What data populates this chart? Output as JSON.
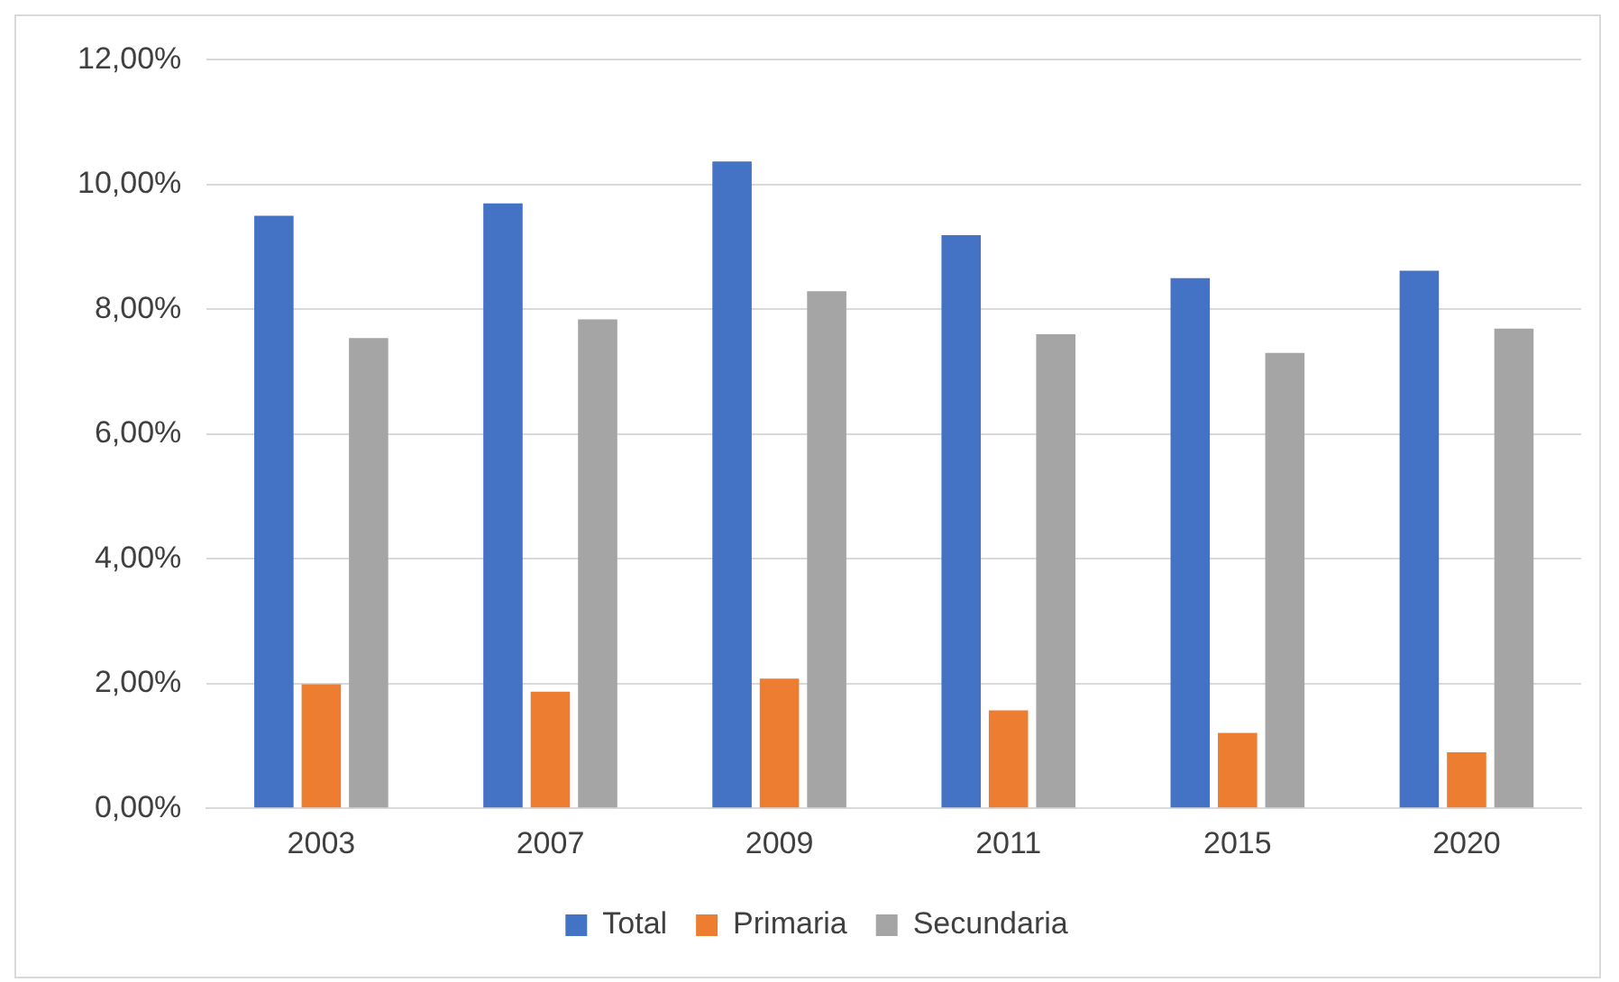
{
  "chart_data": {
    "type": "bar",
    "categories": [
      "2003",
      "2007",
      "2009",
      "2011",
      "2015",
      "2020"
    ],
    "series": [
      {
        "name": "Total",
        "color": "#4472c4",
        "values": [
          9.5,
          9.7,
          10.37,
          9.19,
          8.5,
          8.62
        ]
      },
      {
        "name": "Primaria",
        "color": "#ed7d31",
        "values": [
          1.99,
          1.87,
          2.08,
          1.57,
          1.21,
          0.9
        ]
      },
      {
        "name": "Secundaria",
        "color": "#a5a5a5",
        "values": [
          7.54,
          7.84,
          8.29,
          7.6,
          7.3,
          7.69
        ]
      }
    ],
    "ylim": [
      0,
      12
    ],
    "yticks": [
      {
        "value": 0,
        "label": "0,00%"
      },
      {
        "value": 2,
        "label": "2,00%"
      },
      {
        "value": 4,
        "label": "4,00%"
      },
      {
        "value": 6,
        "label": "6,00%"
      },
      {
        "value": 8,
        "label": "8,00%"
      },
      {
        "value": 10,
        "label": "10,00%"
      },
      {
        "value": 12,
        "label": "12,00%"
      }
    ],
    "grid": "y",
    "legend": "bottom"
  }
}
